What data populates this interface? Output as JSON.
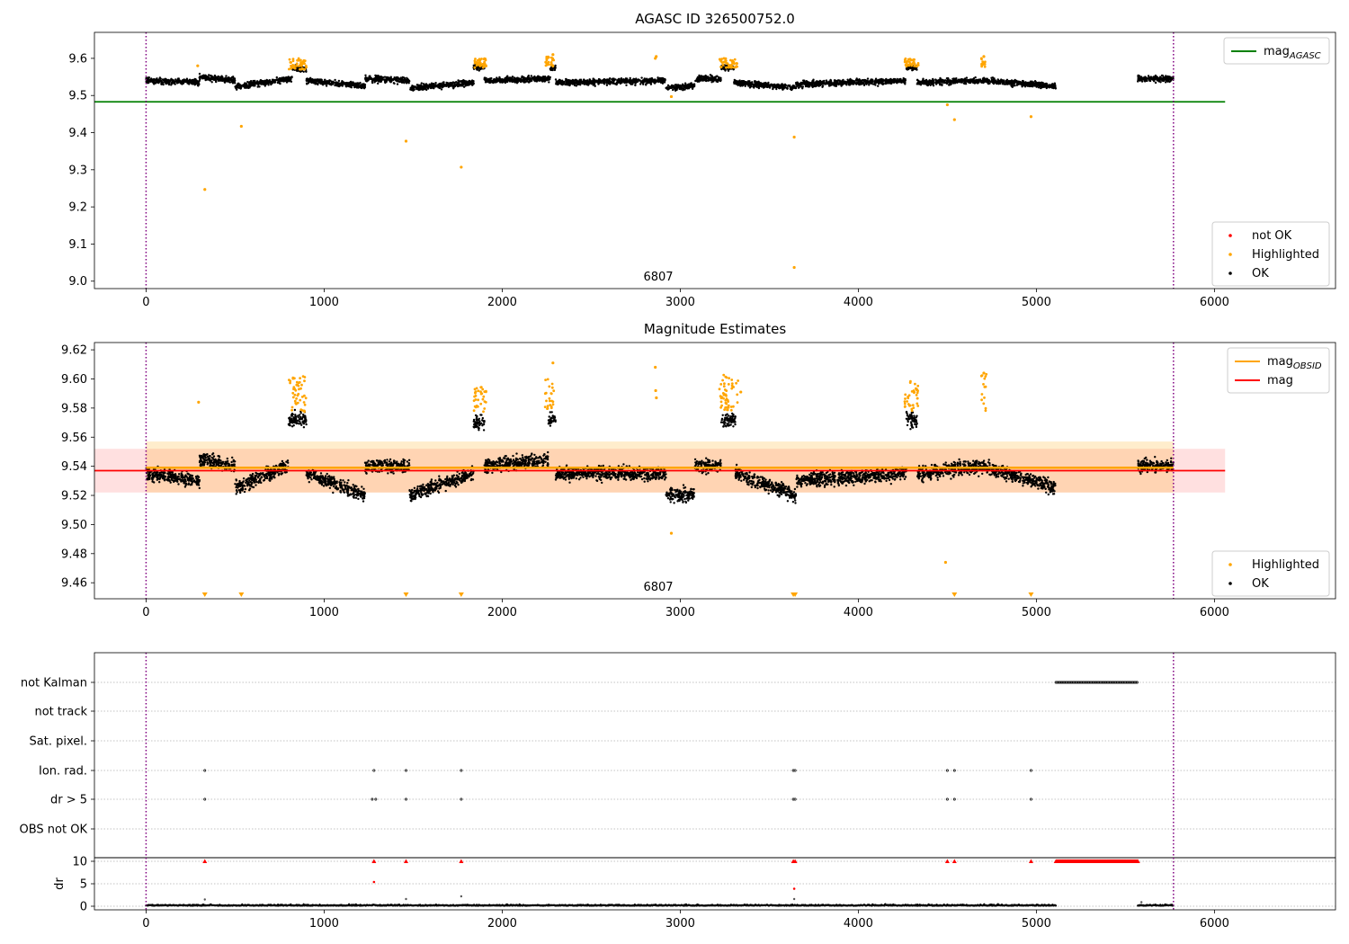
{
  "chart_data": [
    {
      "type": "scatter",
      "title": "AGASC ID 326500752.0",
      "xlim": [
        -290,
        6680
      ],
      "ylim": [
        8.98,
        9.67
      ],
      "xticks": [
        0,
        1000,
        2000,
        3000,
        4000,
        5000,
        6000
      ],
      "yticks": [
        9.0,
        9.1,
        9.2,
        9.3,
        9.4,
        9.5,
        9.6
      ],
      "annotation": "6807",
      "vlines": [
        0,
        5770
      ],
      "mag_agasc": 9.483,
      "mag_agasc_xrange": [
        -290,
        6060
      ],
      "legend_lines": [
        {
          "label": "mag",
          "sub": "AGASC",
          "color": "#008000"
        }
      ],
      "legend_points": [
        {
          "label": "not OK",
          "color": "#ff0000"
        },
        {
          "label": "Highlighted",
          "color": "#ffa500"
        },
        {
          "label": "OK",
          "color": "#000000"
        }
      ],
      "ok_segments": [
        {
          "x": [
            0,
            300
          ],
          "y": [
            9.54,
            9.535
          ]
        },
        {
          "x": [
            300,
            500
          ],
          "y": [
            9.55,
            9.54
          ]
        },
        {
          "x": [
            500,
            820
          ],
          "y": [
            9.525,
            9.545
          ]
        },
        {
          "x": [
            820,
            900
          ],
          "y": [
            9.575,
            9.57
          ]
        },
        {
          "x": [
            900,
            1230
          ],
          "y": [
            9.54,
            9.525
          ]
        },
        {
          "x": [
            1230,
            1480
          ],
          "y": [
            9.545,
            9.54
          ]
        },
        {
          "x": [
            1480,
            1840
          ],
          "y": [
            9.52,
            9.535
          ]
        },
        {
          "x": [
            1840,
            1900
          ],
          "y": [
            9.575,
            9.575
          ]
        },
        {
          "x": [
            1900,
            2270
          ],
          "y": [
            9.54,
            9.545
          ]
        },
        {
          "x": [
            2270,
            2300
          ],
          "y": [
            9.575,
            9.575
          ]
        },
        {
          "x": [
            2300,
            2920
          ],
          "y": [
            9.535,
            9.54
          ]
        },
        {
          "x": [
            2920,
            3080
          ],
          "y": [
            9.52,
            9.525
          ]
        },
        {
          "x": [
            3080,
            3230
          ],
          "y": [
            9.545,
            9.545
          ]
        },
        {
          "x": [
            3230,
            3300
          ],
          "y": [
            9.575,
            9.575
          ]
        },
        {
          "x": [
            3300,
            3650
          ],
          "y": [
            9.535,
            9.52
          ]
        },
        {
          "x": [
            3650,
            4270
          ],
          "y": [
            9.53,
            9.54
          ]
        },
        {
          "x": [
            4270,
            4330
          ],
          "y": [
            9.575,
            9.575
          ]
        },
        {
          "x": [
            4330,
            4700
          ],
          "y": [
            9.535,
            9.54
          ]
        },
        {
          "x": [
            4700,
            5110
          ],
          "y": [
            9.54,
            9.525
          ]
        },
        {
          "x": [
            5570,
            5770
          ],
          "y": [
            9.545,
            9.545
          ]
        }
      ],
      "highlighted": [
        {
          "x": 330,
          "y": 9.247
        },
        {
          "x": 535,
          "y": 9.417
        },
        {
          "x": 1460,
          "y": 9.377
        },
        {
          "x": 1770,
          "y": 9.307
        },
        {
          "x": 3640,
          "y": 9.388
        },
        {
          "x": 3640,
          "y": 9.037
        },
        {
          "x": 4500,
          "y": 9.475
        },
        {
          "x": 4540,
          "y": 9.435
        },
        {
          "x": 4970,
          "y": 9.443
        },
        {
          "x": 2950,
          "y": 9.497
        },
        {
          "x": 290,
          "y": 9.58
        },
        {
          "x": 2860,
          "y": 9.6
        },
        {
          "x": 2865,
          "y": 9.605
        },
        {
          "x": 2285,
          "y": 9.61
        },
        {
          "x": 4705,
          "y": 9.605
        }
      ],
      "highlight_clusters": [
        {
          "x": [
            800,
            900
          ],
          "y": [
            9.57,
            9.6
          ]
        },
        {
          "x": [
            1840,
            1910
          ],
          "y": [
            9.575,
            9.6
          ]
        },
        {
          "x": [
            2240,
            2290
          ],
          "y": [
            9.578,
            9.605
          ]
        },
        {
          "x": [
            3220,
            3320
          ],
          "y": [
            9.575,
            9.6
          ]
        },
        {
          "x": [
            4260,
            4340
          ],
          "y": [
            9.578,
            9.6
          ]
        },
        {
          "x": [
            4690,
            4720
          ],
          "y": [
            9.575,
            9.6
          ]
        }
      ]
    },
    {
      "type": "scatter",
      "title": "Magnitude Estimates",
      "xlim": [
        -290,
        6680
      ],
      "ylim": [
        9.449,
        9.625
      ],
      "xticks": [
        0,
        1000,
        2000,
        3000,
        4000,
        5000,
        6000
      ],
      "yticks": [
        9.46,
        9.48,
        9.5,
        9.52,
        9.54,
        9.56,
        9.58,
        9.6,
        9.62
      ],
      "annotation": "6807",
      "vlines": [
        0,
        5770
      ],
      "mag": 9.537,
      "mag_band": [
        9.522,
        9.552
      ],
      "mag_obsid": 9.539,
      "mag_obsid_band": [
        9.522,
        9.557
      ],
      "mag_xrange": [
        -290,
        6060
      ],
      "legend_lines": [
        {
          "label": "mag",
          "sub": "OBSID",
          "color": "#ffa500"
        },
        {
          "label": "mag",
          "sub": "",
          "color": "#ff0000"
        }
      ],
      "legend_points": [
        {
          "label": "Highlighted",
          "color": "#ffa500"
        },
        {
          "label": "OK",
          "color": "#000000"
        }
      ],
      "ok_segments": [
        {
          "x": [
            0,
            300
          ],
          "y": [
            9.535,
            9.53
          ]
        },
        {
          "x": [
            300,
            500
          ],
          "y": [
            9.545,
            9.54
          ]
        },
        {
          "x": [
            500,
            800
          ],
          "y": [
            9.525,
            9.54
          ]
        },
        {
          "x": [
            800,
            900
          ],
          "y": [
            9.572,
            9.572
          ]
        },
        {
          "x": [
            900,
            1230
          ],
          "y": [
            9.535,
            9.52
          ]
        },
        {
          "x": [
            1230,
            1480
          ],
          "y": [
            9.54,
            9.54
          ]
        },
        {
          "x": [
            1480,
            1840
          ],
          "y": [
            9.52,
            9.535
          ]
        },
        {
          "x": [
            1840,
            1900
          ],
          "y": [
            9.57,
            9.57
          ]
        },
        {
          "x": [
            1900,
            2260
          ],
          "y": [
            9.54,
            9.545
          ]
        },
        {
          "x": [
            2260,
            2300
          ],
          "y": [
            9.572,
            9.572
          ]
        },
        {
          "x": [
            2300,
            2920
          ],
          "y": [
            9.535,
            9.535
          ]
        },
        {
          "x": [
            2920,
            3080
          ],
          "y": [
            9.52,
            9.52
          ]
        },
        {
          "x": [
            3080,
            3230
          ],
          "y": [
            9.54,
            9.54
          ]
        },
        {
          "x": [
            3230,
            3310
          ],
          "y": [
            9.572,
            9.572
          ]
        },
        {
          "x": [
            3310,
            3650
          ],
          "y": [
            9.535,
            9.52
          ]
        },
        {
          "x": [
            3650,
            4270
          ],
          "y": [
            9.53,
            9.535
          ]
        },
        {
          "x": [
            4270,
            4330
          ],
          "y": [
            9.572,
            9.572
          ]
        },
        {
          "x": [
            4330,
            4690
          ],
          "y": [
            9.535,
            9.54
          ]
        },
        {
          "x": [
            4690,
            5110
          ],
          "y": [
            9.54,
            9.525
          ]
        },
        {
          "x": [
            5570,
            5770
          ],
          "y": [
            9.54,
            9.54
          ]
        }
      ],
      "highlighted": [
        {
          "x": 295,
          "y": 9.584
        },
        {
          "x": 2285,
          "y": 9.611
        },
        {
          "x": 2860,
          "y": 9.608
        },
        {
          "x": 2862,
          "y": 9.592
        },
        {
          "x": 2866,
          "y": 9.587
        },
        {
          "x": 2950,
          "y": 9.494
        },
        {
          "x": 4490,
          "y": 9.474
        },
        {
          "x": 4705,
          "y": 9.604
        },
        {
          "x": 3340,
          "y": 9.591
        }
      ],
      "highlight_clusters": [
        {
          "x": [
            800,
            900
          ],
          "y": [
            9.577,
            9.602
          ]
        },
        {
          "x": [
            1840,
            1910
          ],
          "y": [
            9.576,
            9.597
          ]
        },
        {
          "x": [
            2240,
            2290
          ],
          "y": [
            9.578,
            9.6
          ]
        },
        {
          "x": [
            3220,
            3330
          ],
          "y": [
            9.578,
            9.603
          ]
        },
        {
          "x": [
            4260,
            4340
          ],
          "y": [
            9.578,
            9.601
          ]
        },
        {
          "x": [
            4690,
            4720
          ],
          "y": [
            9.578,
            9.604
          ]
        }
      ],
      "below_markers": [
        330,
        535,
        1460,
        1770,
        3635,
        3645,
        4540,
        4970
      ]
    },
    {
      "type": "scatter",
      "title": "",
      "xlim": [
        -290,
        6680
      ],
      "xticks": [
        0,
        1000,
        2000,
        3000,
        4000,
        5000,
        6000
      ],
      "vlines": [
        0,
        5770
      ],
      "flag_rows": [
        "not Kalman",
        "not track",
        "Sat. pixel.",
        "Ion. rad.",
        "dr > 5",
        "OBS not OK"
      ],
      "flags": {
        "not Kalman": {
          "range": [
            5110,
            5570
          ]
        },
        "Ion. rad.": {
          "points": [
            330,
            1280,
            1460,
            1770,
            3635,
            3645,
            4500,
            4540,
            4970
          ]
        },
        "dr > 5": {
          "points": [
            330,
            1270,
            1290,
            1460,
            1770,
            3635,
            3645,
            4500,
            4540,
            4970
          ]
        }
      },
      "dr": {
        "ylabel": "dr",
        "yticks": [
          0,
          5,
          10
        ],
        "ylim": [
          -0.8,
          10.8
        ],
        "baseline_segments": [
          [
            0,
            5110
          ],
          [
            5570,
            5770
          ]
        ],
        "red_caps": [
          330,
          1280,
          1460,
          1770,
          3635,
          3645,
          4500,
          4540,
          4970
        ],
        "red_cap_range": [
          5110,
          5570
        ],
        "red_cap_value": 10,
        "red_points": [
          {
            "x": 1280,
            "y": 5.4
          },
          {
            "x": 3640,
            "y": 3.9
          }
        ],
        "gray_points": [
          {
            "x": 330,
            "y": 1.5
          },
          {
            "x": 1460,
            "y": 1.6
          },
          {
            "x": 1770,
            "y": 2.2
          },
          {
            "x": 3640,
            "y": 1.6
          },
          {
            "x": 5590,
            "y": 0.9
          }
        ]
      }
    }
  ]
}
